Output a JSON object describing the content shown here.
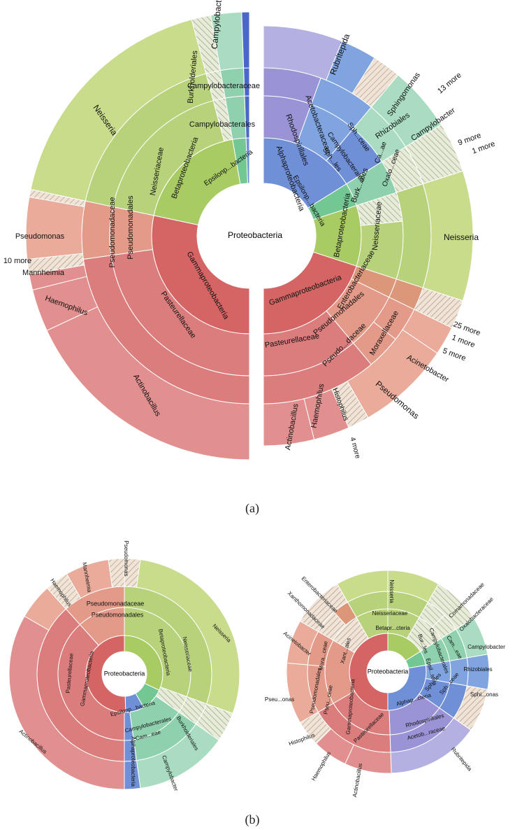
{
  "figure": {
    "caption_a": "(a)",
    "caption_b": "(b)"
  },
  "colors": {
    "neisseria": "#c8dc8c",
    "neisseria_mid": "#b7d27a",
    "neisseria_in": "#a9cb63",
    "gamma_out": "#e18f8f",
    "gamma_mid": "#dc7d7d",
    "gamma_in": "#d56565",
    "pseudo_out": "#eaab9b",
    "pseudo_mid": "#e39a88",
    "enterobact": "#dc9679",
    "campylo": "#a9dcc0",
    "campylo_mid": "#8fd1ae",
    "epsilon": "#72c792",
    "alpha": "#6f8fd6",
    "rubritepida": "#b4b0e2",
    "rhodo": "#9a93d6",
    "rhizo": "#7fa4e0",
    "hatched": "#f2e3d3",
    "stroke": "#ffffff",
    "line": "#555555",
    "magenta": "#d14ba5",
    "blue_strip": "#4a68c9"
  },
  "panel_a_left": {
    "center": "Proteobacteria",
    "labels": [
      {
        "text": "Neisseria"
      },
      {
        "text": "Campylobacter"
      },
      {
        "text": "Burkholderiales"
      },
      {
        "text": "Campylobacteraceae"
      },
      {
        "text": "Campylobacterales"
      },
      {
        "text": "Neisseriaceae"
      },
      {
        "text": "Betaproteobacteria"
      },
      {
        "text": "Epsilonp...bacteria"
      },
      {
        "text": "Pseudomonadaceae"
      },
      {
        "text": "Pseudomonadales"
      },
      {
        "text": "Pseudomonas"
      },
      {
        "text": "10 more"
      },
      {
        "text": "Mannheimia"
      },
      {
        "text": "Haemophilus"
      },
      {
        "text": "Pasteurellaceae"
      },
      {
        "text": "Gammaproteobacteria"
      },
      {
        "text": "Actinobacillus"
      }
    ]
  },
  "panel_a_right": {
    "center": "Proteobacteria",
    "labels": [
      {
        "text": "Rubritepida"
      },
      {
        "text": "Sphingomonas"
      },
      {
        "text": "13 more"
      },
      {
        "text": "Acetobacteraceae"
      },
      {
        "text": "Rhodospirillales"
      },
      {
        "text": "Rhizobiales"
      },
      {
        "text": "Campylobacter"
      },
      {
        "text": "9 more"
      },
      {
        "text": "1 more"
      },
      {
        "text": "Alphaproteobacteria"
      },
      {
        "text": "Epsilonp...bacteria"
      },
      {
        "text": "Campylobacterales"
      },
      {
        "text": "Betaproteobacteria"
      },
      {
        "text": "Burk...ales"
      },
      {
        "text": "Neisseriaceae"
      },
      {
        "text": "Neisseria"
      },
      {
        "text": "Oxalo...ceae"
      },
      {
        "text": "Ca...ae"
      },
      {
        "text": "Sph...ceae"
      },
      {
        "text": "Sph...les"
      },
      {
        "text": "Enterobacteriaceae"
      },
      {
        "text": "Gammaproteobacteria"
      },
      {
        "text": "Pseudomonadales"
      },
      {
        "text": "Pasteurellaceae"
      },
      {
        "text": "Pseudo...daceae"
      },
      {
        "text": "Moraxellaceae"
      },
      {
        "text": "25 more"
      },
      {
        "text": "1 more"
      },
      {
        "text": "5 more"
      },
      {
        "text": "Acinetobacter"
      },
      {
        "text": "Pseudomonas"
      },
      {
        "text": "Histophilus"
      },
      {
        "text": "4 more"
      },
      {
        "text": "Haemophilus"
      },
      {
        "text": "Actinobacillus"
      }
    ]
  },
  "panel_b_left": {
    "center": "Proteobacteria",
    "labels": [
      {
        "text": "Pseudomonas"
      },
      {
        "text": "Mannheimia"
      },
      {
        "text": "Haemophilus"
      },
      {
        "text": "Pseudomonadaceae"
      },
      {
        "text": "Pseudomonadales"
      },
      {
        "text": "Neisseria"
      },
      {
        "text": "Neisseriaceae"
      },
      {
        "text": "Betaproteobacteria"
      },
      {
        "text": "Gammaproteobacteria"
      },
      {
        "text": "Pasteurellaceae"
      },
      {
        "text": "Epsilonp...bacteria"
      },
      {
        "text": "Campylobacterales"
      },
      {
        "text": "Cam...eae"
      },
      {
        "text": "Burkholderiales"
      },
      {
        "text": "Alphaproteobacteria"
      },
      {
        "text": "Campylobacter"
      },
      {
        "text": "Actinobacillus"
      }
    ]
  },
  "panel_b_right": {
    "center": "Proteobacteria",
    "labels": [
      {
        "text": "Neisseria"
      },
      {
        "text": "Enterobacteriaceae"
      },
      {
        "text": "Xanthomonadaceae"
      },
      {
        "text": "Comamonadaceae"
      },
      {
        "text": "Oxalobacteraceae"
      },
      {
        "text": "Neisseriaceae"
      },
      {
        "text": "Betapr...cteria"
      },
      {
        "text": "Acinetobacter"
      },
      {
        "text": "Mora...ceae"
      },
      {
        "text": "Xant...ales"
      },
      {
        "text": "Bur...les"
      },
      {
        "text": "Campylobacterales"
      },
      {
        "text": "Cam...eae"
      },
      {
        "text": "Campylobacter"
      },
      {
        "text": "Rhizobiales"
      },
      {
        "text": "Epsil...teria"
      },
      {
        "text": "Pseudomonadales"
      },
      {
        "text": "Pseu...onas"
      },
      {
        "text": "Pseu...ceae"
      },
      {
        "text": "Gammaproteobacteria"
      },
      {
        "text": "Alphap...cteria"
      },
      {
        "text": "Sph...les"
      },
      {
        "text": "Sph...ceae"
      },
      {
        "text": "Sphi...onas"
      },
      {
        "text": "Rhodospirillales"
      },
      {
        "text": "Acetob...raceae"
      },
      {
        "text": "Pasteurellaceae"
      },
      {
        "text": "Histophilus"
      },
      {
        "text": "Haemophilus"
      },
      {
        "text": "Actinobacillus"
      },
      {
        "text": "Rubritepida"
      }
    ]
  }
}
